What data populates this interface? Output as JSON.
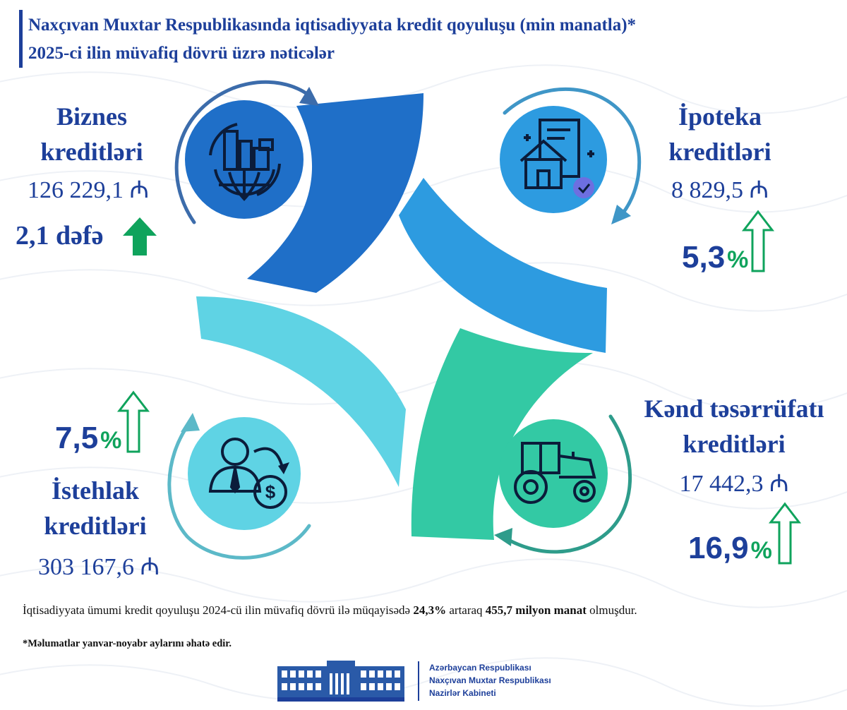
{
  "header": {
    "line1": "Naxçıvan Muxtar Respublikasında iqtisadiyyata kredit qoyuluşu (min manatla)*",
    "line2": "2025-ci ilin müvafiq dövrü üzrə nəticələr"
  },
  "business": {
    "line1": "Biznes",
    "line2": "kreditləri",
    "value": "126 229,1 ₼",
    "growth": "2,1 dəfə",
    "icon": "city-globe-icon"
  },
  "mortgage": {
    "line1": "İpoteka",
    "line2": "kreditləri",
    "value": "8 829,5 ₼",
    "percent": "5,3",
    "percent_sign": "%",
    "icon": "house-document-icon"
  },
  "consumer": {
    "line1": "İstehlak",
    "line2": "kreditləri",
    "value": "303 167,6 ₼",
    "percent": "7,5",
    "percent_sign": "%",
    "icon": "person-money-icon"
  },
  "agriculture": {
    "line1": "Kənd təsərrüfatı",
    "line2": "kreditləri",
    "value": "17 442,3 ₼",
    "percent": "16,9",
    "percent_sign": "%",
    "icon": "tractor-icon"
  },
  "summary": {
    "part1": "İqtisadiyyata ümumi kredit qoyuluşu 2024-cü ilin müvafiq dövrü ilə müqayisədə ",
    "growth": "24,3%",
    "part2": " artaraq ",
    "total": "455,7 milyon manat",
    "part3": " olmuşdur."
  },
  "note": "*Məlumatlar yanvar-noyabr aylarını əhatə edir.",
  "footer": {
    "line1": "Azərbaycan Respublikası",
    "line2": "Naxçıvan Muxtar Respublikası",
    "line3": "Nazirlər Kabineti"
  },
  "colors": {
    "title_blue": "#1d3f9a",
    "dark_blue": "#1f6fc8",
    "mid_blue": "#2d9be0",
    "light_cyan": "#5fd3e4",
    "teal": "#33c9a4",
    "green": "#0fa35c"
  }
}
